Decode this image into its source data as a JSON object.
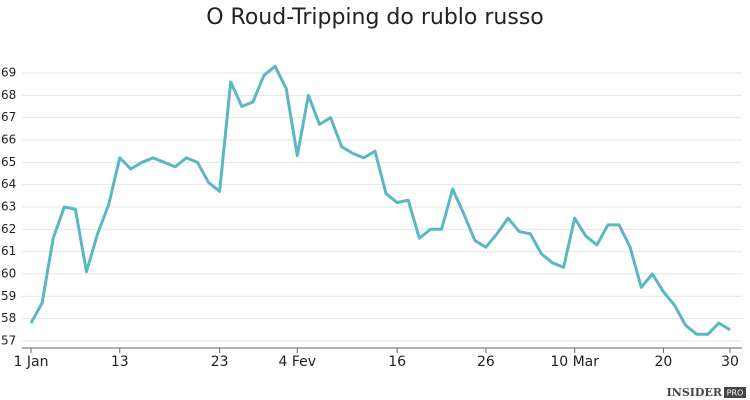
{
  "chart_data": {
    "type": "line",
    "title": "O Roud-Tripping do rublo russo",
    "categories": [
      "1 Jan",
      null,
      null,
      null,
      null,
      null,
      null,
      null,
      "13",
      null,
      null,
      null,
      null,
      null,
      null,
      null,
      null,
      "23",
      null,
      null,
      null,
      null,
      null,
      null,
      "4 Fev",
      null,
      null,
      null,
      null,
      null,
      null,
      null,
      null,
      "16",
      null,
      null,
      null,
      null,
      null,
      null,
      null,
      "26",
      null,
      null,
      null,
      null,
      null,
      null,
      null,
      "10 Mar",
      null,
      null,
      null,
      null,
      null,
      null,
      null,
      "20",
      null,
      null,
      null,
      null,
      null,
      "30"
    ],
    "values": [
      57.8,
      58.7,
      61.6,
      63.0,
      62.9,
      60.1,
      61.8,
      63.1,
      65.2,
      64.7,
      65.0,
      65.2,
      65.0,
      64.8,
      65.2,
      65.0,
      64.1,
      63.7,
      68.6,
      67.5,
      67.7,
      68.9,
      69.3,
      68.3,
      65.3,
      68.0,
      66.7,
      67.0,
      65.7,
      65.4,
      65.2,
      65.5,
      63.6,
      63.2,
      63.3,
      61.6,
      62.0,
      62.0,
      63.8,
      62.7,
      61.5,
      61.2,
      61.8,
      62.5,
      61.9,
      61.8,
      60.9,
      60.5,
      60.3,
      62.5,
      61.7,
      61.3,
      62.2,
      62.2,
      61.2,
      59.4,
      60.0,
      59.2,
      58.6,
      57.7,
      57.3,
      57.3,
      57.8,
      57.5
    ],
    "color": "#5ab7c3",
    "ylim": [
      56.9,
      69.6
    ],
    "yticks": [
      57,
      58,
      59,
      60,
      61,
      62,
      63,
      64,
      65,
      66,
      67,
      68,
      69
    ],
    "grid": true,
    "footer": "INSIDER",
    "footer_badge": "PRO"
  }
}
